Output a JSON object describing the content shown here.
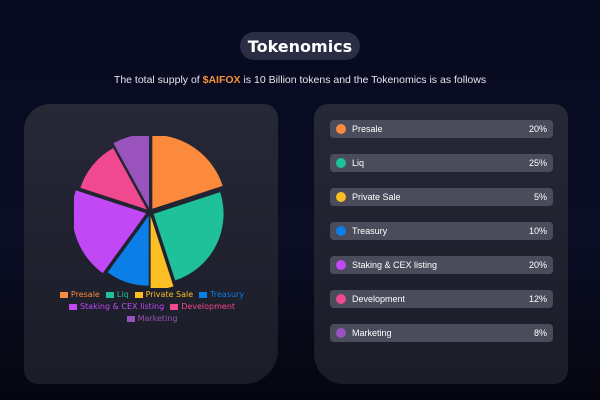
{
  "header": {
    "title": "Tokenomics",
    "subtitle_prefix": "The total supply of ",
    "token": "$AIFOX",
    "subtitle_suffix": " is 10 Billion tokens and the Tokenomics is as follows"
  },
  "chart_data": {
    "type": "pie",
    "title": "",
    "legend_position": "bottom",
    "slices": [
      {
        "label": "Presale",
        "value": 20,
        "color": "#fb8a3c"
      },
      {
        "label": "Liq",
        "value": 25,
        "color": "#1fc19a"
      },
      {
        "label": "Private Sale",
        "value": 5,
        "color": "#fbbf24"
      },
      {
        "label": "Treasury",
        "value": 10,
        "color": "#0b7fe6"
      },
      {
        "label": "Staking & CEX listing",
        "value": 20,
        "color": "#c048f5"
      },
      {
        "label": "Development",
        "value": 12,
        "color": "#f0498f"
      },
      {
        "label": "Marketing",
        "value": 8,
        "color": "#9a52bd"
      }
    ]
  },
  "allocation_list": [
    {
      "label": "Presale",
      "percent": "20%",
      "color": "#fb8a3c"
    },
    {
      "label": "Liq",
      "percent": "25%",
      "color": "#1fc19a"
    },
    {
      "label": "Private Sale",
      "percent": "5%",
      "color": "#fbbf24"
    },
    {
      "label": "Treasury",
      "percent": "10%",
      "color": "#0b7fe6"
    },
    {
      "label": "Staking & CEX listing",
      "percent": "20%",
      "color": "#c048f5"
    },
    {
      "label": "Development",
      "percent": "12%",
      "color": "#f0498f"
    },
    {
      "label": "Marketing",
      "percent": "8%",
      "color": "#9a52bd"
    }
  ]
}
